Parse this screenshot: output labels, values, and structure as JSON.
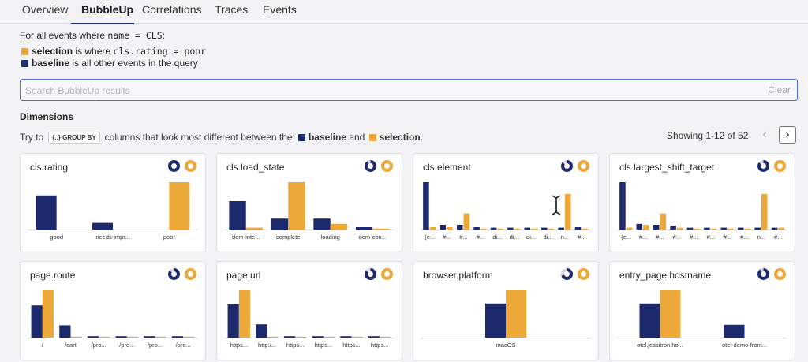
{
  "tabs": [
    {
      "label": "Overview",
      "active": false
    },
    {
      "label": "BubbleUp",
      "active": true
    },
    {
      "label": "Correlations",
      "active": false
    },
    {
      "label": "Traces",
      "active": false
    },
    {
      "label": "Events",
      "active": false
    }
  ],
  "intro": {
    "prefix": "For all events where ",
    "code": "name = CLS",
    "suffix": ":"
  },
  "legend": {
    "selection": {
      "word": "selection",
      "text_a": " is where ",
      "code": "cls.rating = poor"
    },
    "baseline": {
      "word": "baseline",
      "text": " is all other events in the query"
    }
  },
  "search": {
    "placeholder": "Search BubbleUp results",
    "value": "",
    "clear_label": "Clear"
  },
  "dimensions": {
    "title": "Dimensions",
    "hint_a": "Try to",
    "chip_label": "GROUP BY",
    "hint_b": "columns that look most different between the",
    "baseline_word": "baseline",
    "and_word": "and",
    "selection_word": "selection",
    "hint_end": "."
  },
  "pagination": {
    "showing": "Showing 1-12 of 52",
    "prev_icon": "chevron-left-icon",
    "next_icon": "chevron-right-icon"
  },
  "colors": {
    "baseline": "#1e2a6e",
    "selection": "#eca93a"
  },
  "chart_data": [
    {
      "type": "bar",
      "title": "cls.rating",
      "baseline_ring": 1.0,
      "selection_ring": 1.0,
      "categories": [
        "good",
        "needs-impr...",
        "poor"
      ],
      "series": [
        {
          "name": "baseline",
          "values": [
            0.72,
            0.14,
            0
          ]
        },
        {
          "name": "selection",
          "values": [
            0,
            0,
            1.0
          ]
        }
      ]
    },
    {
      "type": "bar",
      "title": "cls.load_state",
      "baseline_ring": 0.9,
      "selection_ring": 1.0,
      "categories": [
        "dom-inte...",
        "complete",
        "loading",
        "dom-con..."
      ],
      "series": [
        {
          "name": "baseline",
          "values": [
            0.6,
            0.23,
            0.23,
            0.05
          ]
        },
        {
          "name": "selection",
          "values": [
            0.04,
            1.0,
            0.12,
            0.02
          ]
        }
      ]
    },
    {
      "type": "bar",
      "title": "cls.element",
      "baseline_ring": 0.85,
      "selection_ring": 1.0,
      "categories": [
        "(e...",
        "#...",
        "#...",
        "#...",
        "di...",
        "di...",
        "di...",
        "di...",
        "n...",
        "#..."
      ],
      "series": [
        {
          "name": "baseline",
          "values": [
            1.0,
            0.1,
            0.1,
            0.05,
            0.04,
            0.04,
            0.04,
            0.04,
            0.04,
            0.05
          ]
        },
        {
          "name": "selection",
          "values": [
            0.05,
            0.05,
            0.34,
            0.02,
            0.02,
            0.02,
            0.02,
            0.02,
            0.75,
            0.02
          ]
        }
      ]
    },
    {
      "type": "bar",
      "title": "cls.largest_shift_target",
      "baseline_ring": 0.85,
      "selection_ring": 1.0,
      "categories": [
        "(e...",
        "#...",
        "#...",
        "#...",
        "#...",
        "#...",
        "#...",
        "#...",
        "n...",
        "#..."
      ],
      "series": [
        {
          "name": "baseline",
          "values": [
            1.0,
            0.12,
            0.1,
            0.08,
            0.04,
            0.04,
            0.04,
            0.04,
            0.04,
            0.04
          ]
        },
        {
          "name": "selection",
          "values": [
            0.04,
            0.1,
            0.34,
            0.04,
            0.02,
            0.02,
            0.02,
            0.02,
            0.75,
            0.04
          ]
        }
      ]
    },
    {
      "type": "bar",
      "title": "page.route",
      "baseline_ring": 0.85,
      "selection_ring": 1.0,
      "categories": [
        "/",
        "/cart",
        "/pro...",
        "/pro...",
        "/pro...",
        "/pro..."
      ],
      "series": [
        {
          "name": "baseline",
          "values": [
            0.68,
            0.26,
            0.03,
            0.03,
            0.03,
            0.03
          ]
        },
        {
          "name": "selection",
          "values": [
            1.0,
            0.02,
            0.02,
            0.02,
            0.02,
            0.02
          ]
        }
      ]
    },
    {
      "type": "bar",
      "title": "page.url",
      "baseline_ring": 0.85,
      "selection_ring": 1.0,
      "categories": [
        "https...",
        "http:/...",
        "https...",
        "https...",
        "https...",
        "https..."
      ],
      "series": [
        {
          "name": "baseline",
          "values": [
            0.7,
            0.28,
            0.03,
            0.03,
            0.03,
            0.03
          ]
        },
        {
          "name": "selection",
          "values": [
            1.0,
            0.02,
            0.02,
            0.02,
            0.02,
            0.02
          ]
        }
      ]
    },
    {
      "type": "bar",
      "title": "browser.platform",
      "baseline_ring": 0.7,
      "selection_ring": 1.0,
      "categories": [
        "macOS"
      ],
      "series": [
        {
          "name": "baseline",
          "values": [
            0.72
          ]
        },
        {
          "name": "selection",
          "values": [
            1.0
          ]
        }
      ]
    },
    {
      "type": "bar",
      "title": "entry_page.hostname",
      "baseline_ring": 0.9,
      "selection_ring": 1.0,
      "categories": [
        "otel.jessitron.ho...",
        "otel-demo-front..."
      ],
      "series": [
        {
          "name": "baseline",
          "values": [
            0.72,
            0.27
          ]
        },
        {
          "name": "selection",
          "values": [
            1.0,
            0
          ]
        }
      ]
    }
  ]
}
